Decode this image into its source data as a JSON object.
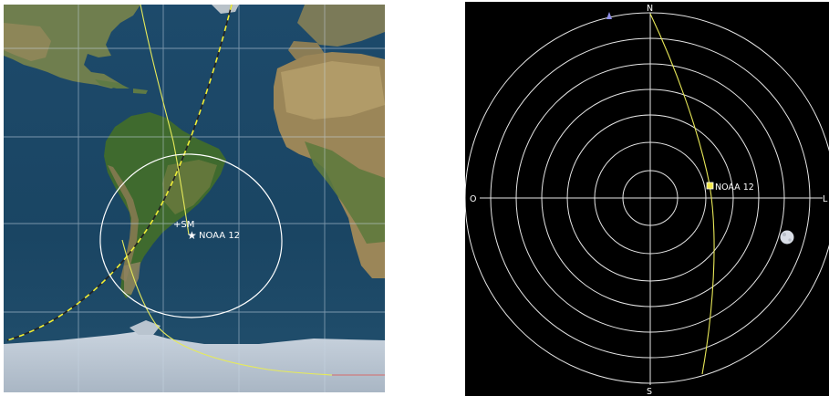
{
  "map": {
    "satellite_label": "NOAA 12",
    "station_label": "+SM",
    "colors": {
      "ground_track": "#e6ea5a",
      "footprint": "#ffffff",
      "terminator": "#f2f238",
      "grid": "#c8d6e4"
    }
  },
  "polar": {
    "compass": {
      "north": "N",
      "south": "S",
      "west": "O",
      "east": "L"
    },
    "satellite_label": "NOAA 12",
    "colors": {
      "track": "#e8e858",
      "rings": "#e6e6e6",
      "satellite": "#f4e84a"
    }
  }
}
